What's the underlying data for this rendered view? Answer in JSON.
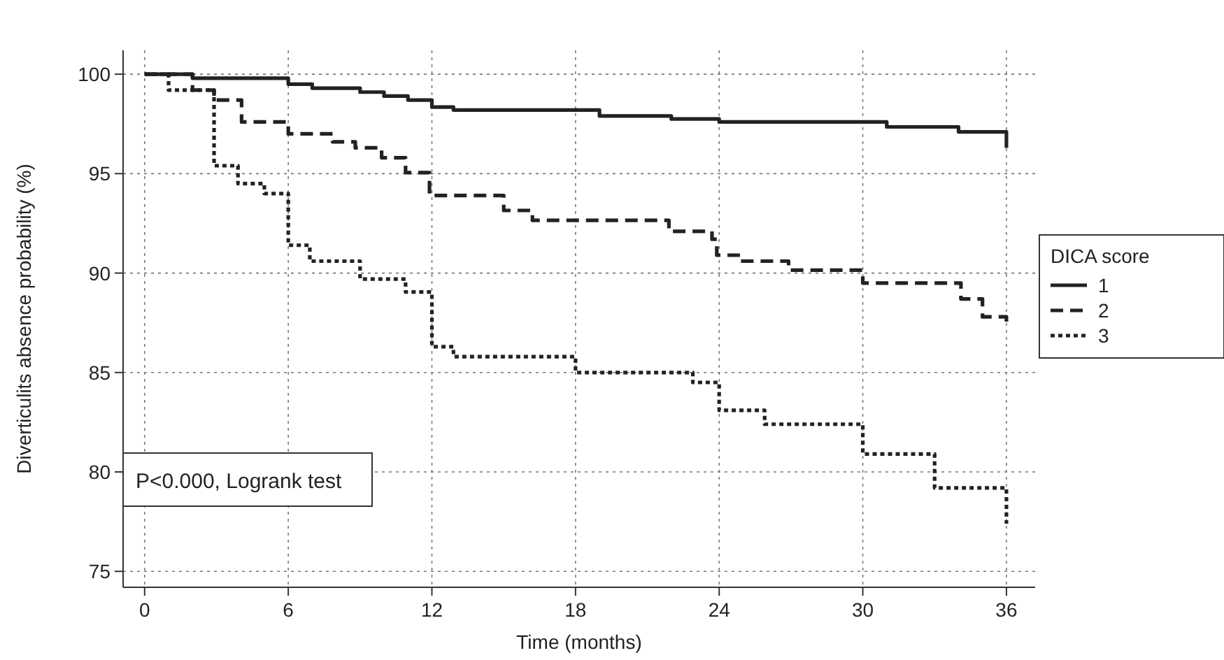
{
  "chart_data": {
    "type": "step",
    "xlabel": "Time (months)",
    "ylabel": "Diverticulits absence probability (%)",
    "legend_title": "DICA score",
    "legend": "right",
    "grid": true,
    "marker": "none",
    "xlim": [
      -0.9,
      37.2
    ],
    "ylim": [
      74.2,
      101.2
    ],
    "xticks": [
      0,
      6,
      12,
      18,
      24,
      30,
      36
    ],
    "yticks": [
      75,
      80,
      85,
      90,
      95,
      100
    ],
    "annotations": [
      "P<0.000, Logrank test"
    ],
    "series": [
      {
        "name": "1",
        "color": "#222222",
        "line_style": "solid",
        "x": [
          0,
          2,
          6,
          7,
          9,
          10,
          11,
          12,
          12.9,
          19,
          22,
          24,
          31,
          34,
          36,
          36
        ],
        "values": [
          100,
          99.8,
          99.5,
          99.3,
          99.1,
          98.9,
          98.7,
          98.35,
          98.2,
          97.9,
          97.75,
          97.6,
          97.35,
          97.1,
          97.1,
          96.3
        ]
      },
      {
        "name": "2",
        "color": "#222222",
        "line_style": "dashed",
        "x": [
          0,
          2,
          2.9,
          4.05,
          6,
          7.85,
          8.8,
          9.9,
          10.9,
          11.9,
          15,
          16.2,
          21.9,
          23.7,
          23.9,
          24.9,
          26.9,
          30,
          34.1,
          35,
          36,
          36
        ],
        "values": [
          100,
          99.2,
          98.7,
          97.6,
          97,
          96.6,
          96.3,
          95.8,
          95.05,
          93.9,
          93.15,
          92.65,
          92.1,
          91.7,
          90.9,
          90.6,
          90.15,
          89.5,
          88.7,
          87.8,
          87.8,
          87.4
        ]
      },
      {
        "name": "3",
        "color": "#222222",
        "line_style": "dotted",
        "x": [
          0,
          1,
          2.9,
          3.9,
          5,
          6,
          6.9,
          9,
          10.9,
          12,
          12.9,
          18,
          22.9,
          24,
          25.9,
          30,
          33,
          36,
          36
        ],
        "values": [
          100,
          99.2,
          95.4,
          94.5,
          94,
          91.4,
          90.6,
          89.7,
          89.05,
          86.3,
          85.8,
          85,
          84.5,
          83.1,
          82.4,
          80.9,
          79.2,
          79.2,
          77.4
        ]
      }
    ]
  }
}
